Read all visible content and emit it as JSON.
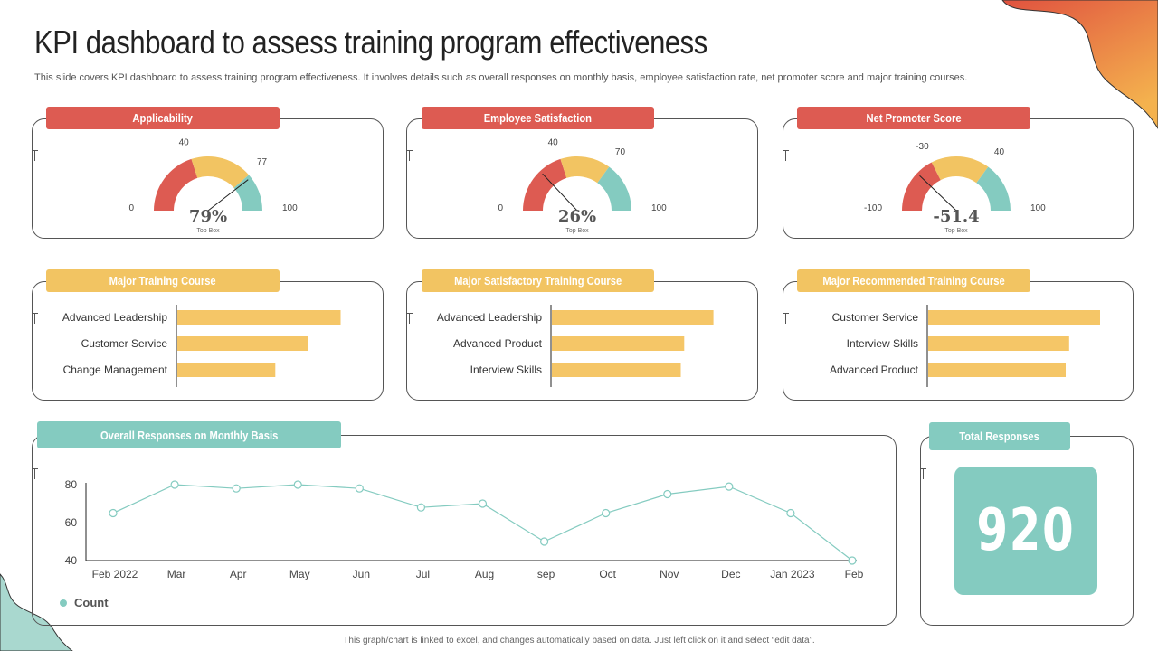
{
  "header": {
    "title": "KPI dashboard to assess training program effectiveness",
    "subtitle": "This slide covers KPI dashboard to assess training program effectiveness. It involves details such as overall responses on monthly basis, employee satisfaction rate, net promoter score and major training courses."
  },
  "footer": {
    "note": "This graph/chart is linked to excel, and changes automatically based on data. Just left click on it and select “edit data”."
  },
  "colors": {
    "red": "#dd5b52",
    "yellow": "#f2c462",
    "teal": "#84cbc0",
    "bar": "#f5c667",
    "deco_orange": "#e8703f",
    "deco_teal": "#a9d8cf"
  },
  "total": {
    "label": "Total Responses",
    "value": "920"
  },
  "chart_data": [
    {
      "type": "gauge",
      "title": "Applicability",
      "min": 0,
      "max": 100,
      "thresholds": [
        40,
        77
      ],
      "min_label": "0",
      "t1_label": "40",
      "t2_label": "77",
      "max_label": "100",
      "value": 79,
      "value_label": "79%",
      "sub_label": "Top Box"
    },
    {
      "type": "gauge",
      "title": "Employee Satisfaction",
      "min": 0,
      "max": 100,
      "thresholds": [
        40,
        70
      ],
      "min_label": "0",
      "t1_label": "40",
      "t2_label": "70",
      "max_label": "100",
      "value": 26,
      "value_label": "26%",
      "sub_label": "Top Box"
    },
    {
      "type": "gauge",
      "title": "Net Promoter  Score",
      "min": -100,
      "max": 100,
      "thresholds": [
        -30,
        40
      ],
      "min_label": "-100",
      "t1_label": "-30",
      "t2_label": "40",
      "max_label": "100",
      "value": -51.4,
      "value_label": "-51.4",
      "sub_label": "Top Box"
    },
    {
      "type": "bar",
      "orientation": "horizontal",
      "title": "Major Training Course",
      "categories": [
        "Advanced Leadership",
        "Customer Service",
        "Change Management"
      ],
      "values": [
        95,
        76,
        57
      ],
      "xlim": [
        0,
        100
      ]
    },
    {
      "type": "bar",
      "orientation": "horizontal",
      "title": "Major Satisfactory  Training Course",
      "categories": [
        "Advanced Leadership",
        "Advanced Product",
        "Interview Skills"
      ],
      "values": [
        94,
        77,
        75
      ],
      "xlim": [
        0,
        100
      ]
    },
    {
      "type": "bar",
      "orientation": "horizontal",
      "title": "Major Recommended  Training Course",
      "categories": [
        "Customer Service",
        "Interview Skills",
        "Advanced Product"
      ],
      "values": [
        100,
        82,
        80
      ],
      "xlim": [
        0,
        100
      ]
    },
    {
      "type": "line",
      "title": "Overall Responses on Monthly Basis",
      "categories": [
        "Feb  2022",
        "Mar",
        "Apr",
        "May",
        "Jun",
        "Jul",
        "Aug",
        "sep",
        "Oct",
        "Nov",
        "Dec",
        "Jan 2023",
        "Feb"
      ],
      "series": [
        {
          "name": "Count",
          "values": [
            65,
            80,
            78,
            80,
            78,
            68,
            70,
            50,
            65,
            75,
            79,
            65,
            40
          ]
        }
      ],
      "ylim": [
        40,
        85
      ],
      "yticks": [
        40,
        60,
        80
      ],
      "ytick_labels": [
        "40",
        "60",
        "80"
      ]
    }
  ]
}
